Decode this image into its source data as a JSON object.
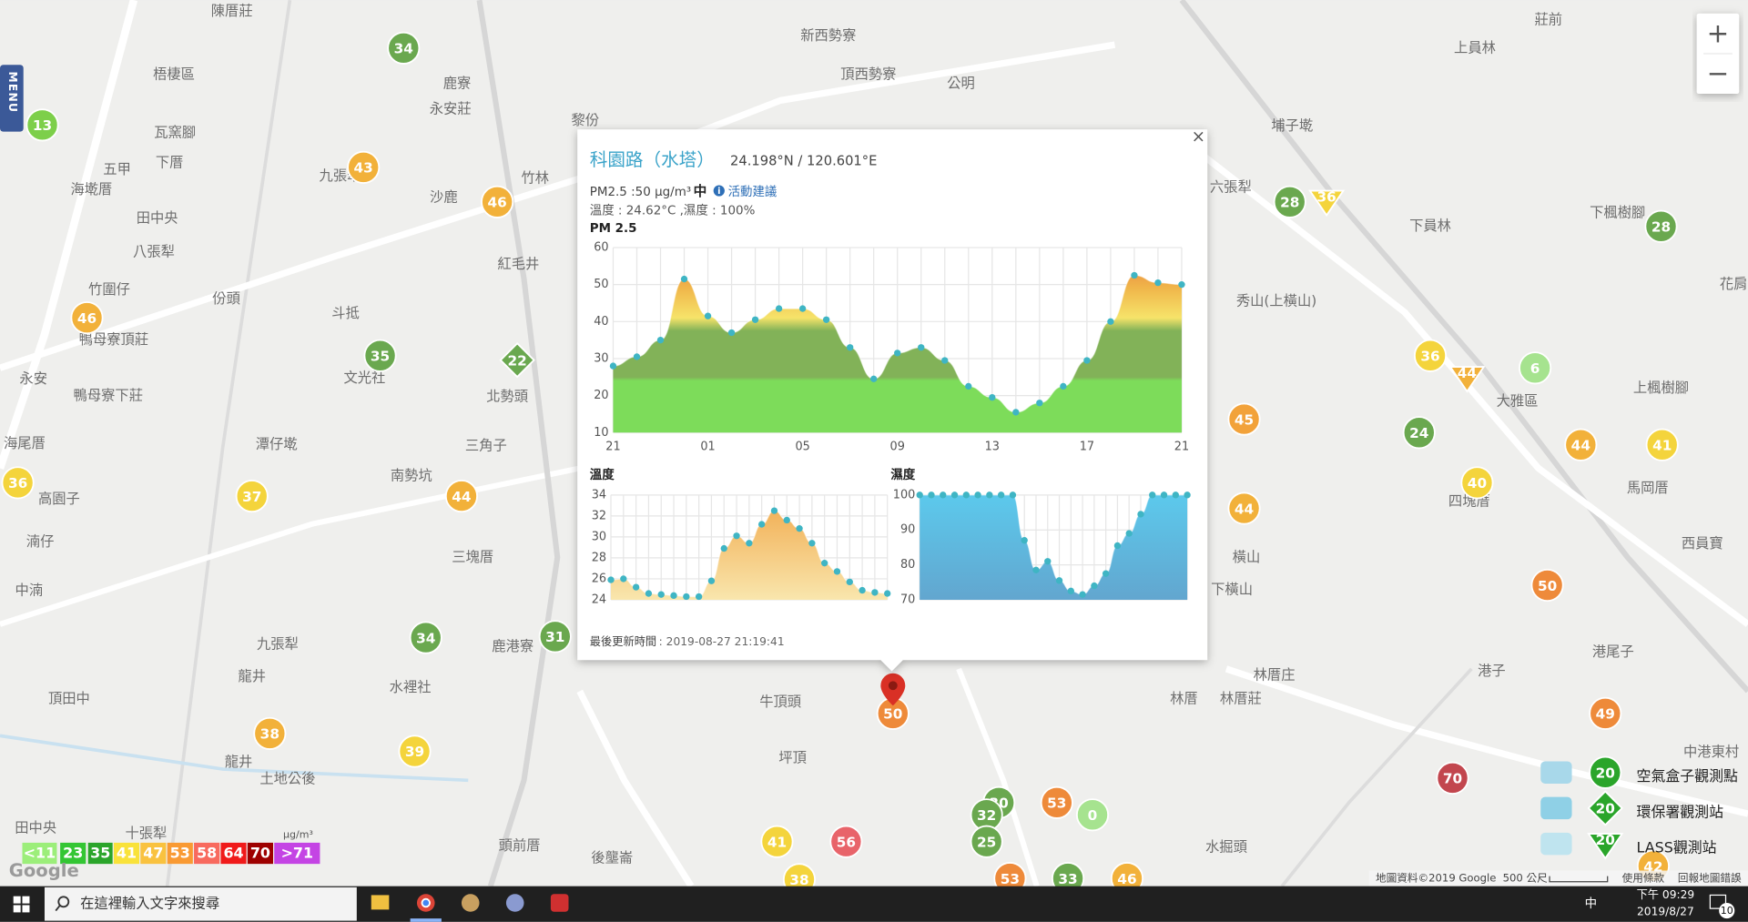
{
  "menu": "MENU",
  "zoom": {
    "in": "+",
    "out": "−"
  },
  "map": {
    "labels": [
      "陳厝莊",
      "梧棲區",
      "瓦窯腳",
      "五甲",
      "下厝",
      "海墘厝",
      "田中央",
      "八張犁",
      "竹圍仔",
      "份頭",
      "鴨母寮頂莊",
      "永安",
      "鴨母寮下莊",
      "海尾厝",
      "高園子",
      "湳仔",
      "中湳",
      "頂田中",
      "九張犁",
      "龍井",
      "龍井",
      "土地公後",
      "田中央",
      "十張犁",
      "鹿寮",
      "永安莊",
      "九張犁",
      "沙鹿",
      "紅毛井",
      "斗抵",
      "文光社",
      "北勢頭",
      "三角子",
      "潭仔墘",
      "南勢坑",
      "三塊厝",
      "水裡社",
      "鹿港寮",
      "新西勢寮",
      "頂西勢寮",
      "公明",
      "牛頂頭",
      "坪頂",
      "埔子墘",
      "六張犁",
      "秀山(上橫山)",
      "下員林",
      "上員林",
      "莊前",
      "下楓樹腳",
      "大雅區",
      "上楓樹腳",
      "馬岡厝",
      "四塊厝",
      "西員寶",
      "港尾子",
      "港子",
      "林厝庄",
      "林厝莊",
      "林厝",
      "橫山",
      "下橫山",
      "中港東村",
      "頭前厝",
      "後壟崙",
      "水掘頭",
      "花肩",
      "黎份",
      "竹林"
    ],
    "markers": [
      {
        "value": 34,
        "color": "#6aa84f",
        "shape": "circle"
      },
      {
        "value": 13,
        "color": "#7dcf4a",
        "shape": "circle"
      },
      {
        "value": 43,
        "color": "#f2b13a",
        "shape": "circle"
      },
      {
        "value": 46,
        "color": "#f2b13a",
        "shape": "circle"
      },
      {
        "value": 46,
        "color": "#f2b13a",
        "shape": "circle"
      },
      {
        "value": 35,
        "color": "#6aa84f",
        "shape": "circle"
      },
      {
        "value": 22,
        "color": "#6aa84f",
        "shape": "diamond"
      },
      {
        "value": 36,
        "color": "#f4d43c",
        "shape": "circle"
      },
      {
        "value": 37,
        "color": "#f4d43c",
        "shape": "circle"
      },
      {
        "value": 44,
        "color": "#f2b13a",
        "shape": "circle"
      },
      {
        "value": 34,
        "color": "#6aa84f",
        "shape": "circle"
      },
      {
        "value": 31,
        "color": "#6aa84f",
        "shape": "circle"
      },
      {
        "value": 38,
        "color": "#f2b13a",
        "shape": "circle"
      },
      {
        "value": 39,
        "color": "#f4d43c",
        "shape": "circle"
      },
      {
        "value": 28,
        "color": "#6aa84f",
        "shape": "circle"
      },
      {
        "value": 36,
        "color": "#f4d43c",
        "shape": "triangle"
      },
      {
        "value": 28,
        "color": "#6aa84f",
        "shape": "circle"
      },
      {
        "value": 36,
        "color": "#f4d43c",
        "shape": "circle"
      },
      {
        "value": 44,
        "color": "#f2b13a",
        "shape": "triangle"
      },
      {
        "value": 6,
        "color": "#a6e38f",
        "shape": "circle"
      },
      {
        "value": 45,
        "color": "#f2a23a",
        "shape": "circle"
      },
      {
        "value": 24,
        "color": "#6aa84f",
        "shape": "circle"
      },
      {
        "value": 44,
        "color": "#f2b13a",
        "shape": "circle"
      },
      {
        "value": 41,
        "color": "#f4d43c",
        "shape": "circle"
      },
      {
        "value": 40,
        "color": "#f4d43c",
        "shape": "circle"
      },
      {
        "value": 44,
        "color": "#f2b13a",
        "shape": "circle"
      },
      {
        "value": 50,
        "color": "#ee8a3a",
        "shape": "circle"
      },
      {
        "value": 49,
        "color": "#ee8a3a",
        "shape": "circle"
      },
      {
        "value": 70,
        "color": "#c2464e",
        "shape": "circle"
      },
      {
        "value": 50,
        "color": "#ee8a3a",
        "shape": "circle"
      },
      {
        "value": 30,
        "color": "#6aa84f",
        "shape": "circle"
      },
      {
        "value": 32,
        "color": "#6aa84f",
        "shape": "circle"
      },
      {
        "value": 53,
        "color": "#ee8a3a",
        "shape": "circle"
      },
      {
        "value": 0,
        "color": "#a6e38f",
        "shape": "circle"
      },
      {
        "value": 25,
        "color": "#6aa84f",
        "shape": "circle"
      },
      {
        "value": 41,
        "color": "#f4d43c",
        "shape": "circle"
      },
      {
        "value": 56,
        "color": "#e8646a",
        "shape": "circle"
      },
      {
        "value": 38,
        "color": "#f4d43c",
        "shape": "circle"
      },
      {
        "value": 53,
        "color": "#ee8a3a",
        "shape": "circle"
      },
      {
        "value": 33,
        "color": "#6aa84f",
        "shape": "circle"
      },
      {
        "value": 46,
        "color": "#f2b13a",
        "shape": "circle"
      },
      {
        "value": 42,
        "color": "#f2b13a",
        "shape": "circle"
      }
    ],
    "attribution": "地圖資料©2019 Google",
    "scale": "500 公尺",
    "terms": "使用條款",
    "report": "回報地圖錯誤",
    "google": "Google"
  },
  "legend": {
    "unit": "μg/m³",
    "items": [
      {
        "label": "<11",
        "color": "#9cee7a"
      },
      {
        "label": "23",
        "color": "#33c633"
      },
      {
        "label": "35",
        "color": "#2aa52a"
      },
      {
        "label": "41",
        "color": "#f9e23a"
      },
      {
        "label": "47",
        "color": "#f9c23f"
      },
      {
        "label": "53",
        "color": "#f99a33"
      },
      {
        "label": "58",
        "color": "#f86a5e"
      },
      {
        "label": "64",
        "color": "#f01a1a"
      },
      {
        "label": "70",
        "color": "#9e0000"
      },
      {
        "label": ">71",
        "color": "#c444e4"
      }
    ]
  },
  "station_legend": [
    {
      "label": "空氣盒子觀測點",
      "marker": "20",
      "shape": "circle"
    },
    {
      "label": "環保署觀測站",
      "marker": "20",
      "shape": "diamond"
    },
    {
      "label": "LASS觀測站",
      "marker": "20",
      "shape": "triangle"
    }
  ],
  "popup": {
    "close": "×",
    "title": "科園路（水塔）",
    "coords": "24.198°N / 120.601°E",
    "pm": "PM2.5 :50 μg/m³",
    "level": "中",
    "advice": "活動建議",
    "env": "溫度 : 24.62°C ,濕度 : 100%",
    "updated_label": "最後更新時間",
    "updated": ": 2019-08-27 21:19:41",
    "pm_chart": {
      "type": "area",
      "title": "PM 2.5",
      "categories": [
        "21",
        null,
        null,
        null,
        "01",
        null,
        null,
        null,
        "05",
        null,
        null,
        null,
        "09",
        null,
        null,
        null,
        "13",
        null,
        null,
        null,
        "17",
        null,
        null,
        null,
        "21"
      ],
      "values": [
        28,
        30.5,
        35,
        51.5,
        41.5,
        37,
        40.5,
        43.5,
        43.5,
        40.5,
        33,
        24.5,
        31.5,
        33,
        29.5,
        22.5,
        19.5,
        15.5,
        18,
        22.5,
        29.5,
        40,
        52.5,
        50.5,
        50
      ],
      "ylim": [
        10,
        60
      ],
      "yticks": [
        10,
        20,
        30,
        40,
        50,
        60
      ],
      "color": "#3fb5c4"
    },
    "temp_chart": {
      "type": "area",
      "title": "溫度",
      "values": [
        25.9,
        26,
        25.2,
        24.6,
        24.5,
        24.4,
        24.3,
        24.3,
        25.8,
        28.9,
        30.1,
        29.4,
        31.2,
        32.5,
        31.6,
        30.8,
        29.4,
        27.5,
        26.7,
        25.7,
        24.9,
        24.7,
        24.6
      ],
      "ylim": [
        24,
        34
      ],
      "yticks": [
        24,
        26,
        28,
        30,
        32,
        34
      ],
      "color": "#3fb5c4"
    },
    "hum_chart": {
      "type": "area",
      "title": "濕度",
      "values": [
        100,
        100,
        100,
        100,
        100,
        100,
        100,
        100,
        100,
        87,
        78.5,
        81,
        75.5,
        72.5,
        71.5,
        74,
        77.5,
        85.5,
        89,
        94.5,
        100,
        100,
        100,
        100
      ],
      "ylim": [
        70,
        100
      ],
      "yticks": [
        70,
        80,
        90,
        100
      ],
      "color": "#3fb5c4"
    }
  },
  "taskbar": {
    "search": "在這裡輸入文字來搜尋",
    "ime": "中",
    "time": "下午 09:29",
    "date": "2019/8/27",
    "badge": "10"
  }
}
